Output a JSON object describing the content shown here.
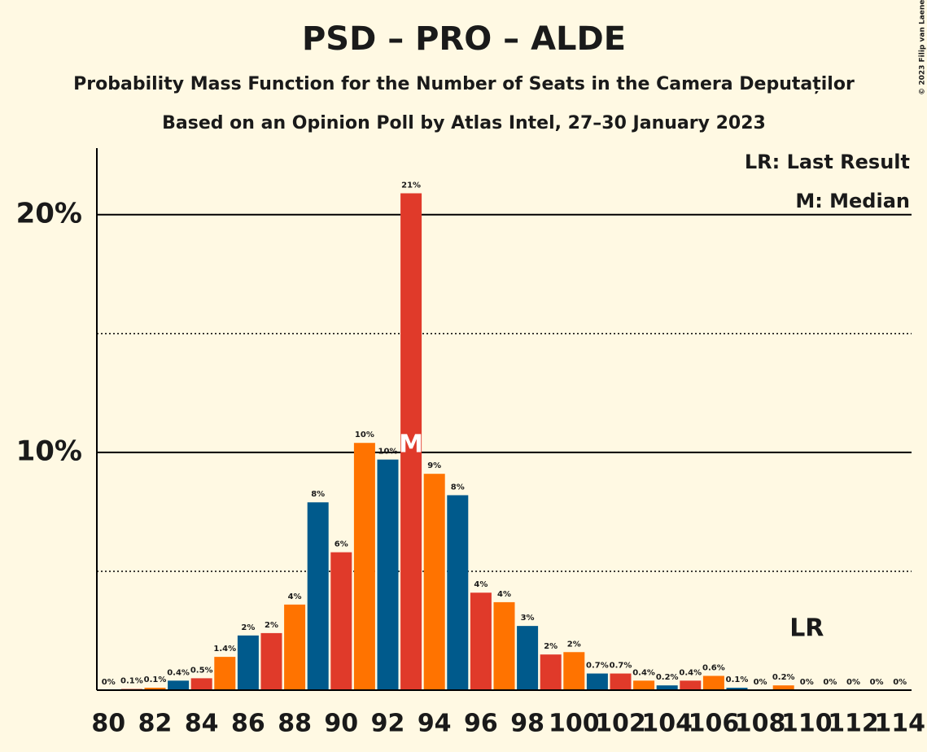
{
  "chart_data": {
    "type": "bar",
    "title": "PSD – PRO – ALDE",
    "subtitle": "Probability Mass Function for the Number of Seats in the Camera Deputaților",
    "subtitle2": "Based on an Opinion Poll by Atlas Intel, 27–30 January 2023",
    "copyright": "© 2023 Filip van Laenen",
    "legend": [
      "LR: Last Result",
      "M: Median"
    ],
    "legend_position": "top-right",
    "categories": [
      80,
      null,
      82,
      null,
      84,
      null,
      86,
      null,
      88,
      null,
      90,
      null,
      92,
      null,
      94,
      null,
      96,
      null,
      98,
      null,
      100,
      null,
      102,
      null,
      104,
      null,
      106,
      null,
      108,
      null,
      110,
      null,
      112,
      null,
      114
    ],
    "values": [
      0,
      0.05,
      0.1,
      0.4,
      0.5,
      1.4,
      2.3,
      2.4,
      3.6,
      7.9,
      5.8,
      10.4,
      9.7,
      20.9,
      9.1,
      8.2,
      4.1,
      3.7,
      2.7,
      1.5,
      1.6,
      0.7,
      0.7,
      0.4,
      0.2,
      0.4,
      0.6,
      0.1,
      0,
      0.2,
      0,
      0,
      0,
      0,
      0
    ],
    "value_labels": [
      "0%",
      "0.1%",
      "0.1%",
      "0.4%",
      "0.5%",
      "1.4%",
      "2%",
      "2%",
      "4%",
      "8%",
      "6%",
      "10%",
      "10%",
      "21%",
      "9%",
      "8%",
      "4%",
      "4%",
      "3%",
      "2%",
      "2%",
      "0.7%",
      "0.7%",
      "0.4%",
      "0.2%",
      "0.4%",
      "0.6%",
      "0.1%",
      "0%",
      "0.2%",
      "0%",
      "0%",
      "0%",
      "0%",
      "0%"
    ],
    "colors": [
      "#005a8c",
      "#e03a2a",
      "#ff7300",
      "#005a8c",
      "#e03a2a",
      "#ff7300",
      "#005a8c",
      "#e03a2a",
      "#ff7300",
      "#005a8c",
      "#e03a2a",
      "#ff7300",
      "#005a8c",
      "#e03a2a",
      "#ff7300",
      "#005a8c",
      "#e03a2a",
      "#ff7300",
      "#005a8c",
      "#e03a2a",
      "#ff7300",
      "#005a8c",
      "#e03a2a",
      "#ff7300",
      "#005a8c",
      "#e03a2a",
      "#ff7300",
      "#005a8c",
      "#e03a2a",
      "#ff7300",
      "#005a8c",
      "#e03a2a",
      "#ff7300",
      "#005a8c",
      "#e03a2a"
    ],
    "median": 93,
    "median_label": "M",
    "last_result": 110,
    "last_result_label": "LR",
    "ylim": [
      0,
      22.8
    ],
    "yticks": [
      {
        "value": 10,
        "label": "10%"
      },
      {
        "value": 20,
        "label": "20%"
      }
    ],
    "minor_yticks": [
      5,
      15
    ],
    "grid": true
  }
}
